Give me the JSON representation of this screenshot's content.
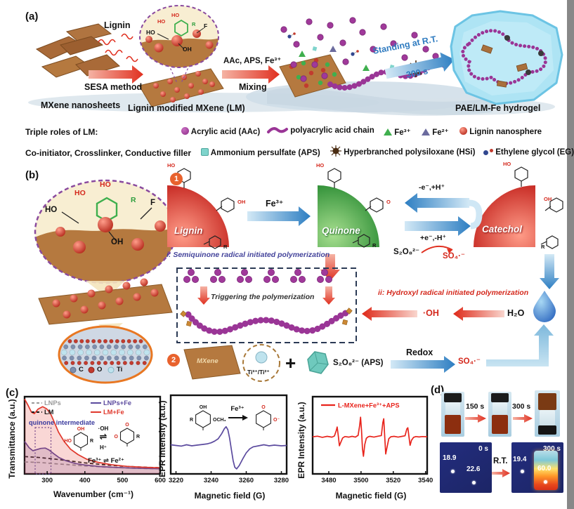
{
  "panel_a": {
    "label": "(a)",
    "steps": {
      "s1_top": "Lignin",
      "s1_bottom": "SESA method",
      "s2_top": "AAc, APS, Fe³⁺",
      "s2_bottom": "Mixing",
      "s3_top": "Standing at R.T.",
      "s3_bottom": "300 s"
    },
    "captions": {
      "mxene": "MXene nanosheets",
      "lm": "Lignin modified MXene (LM)",
      "hydrogel": "PAE/LM-Fe hydrogel"
    },
    "inset": {
      "ho_top": "HO",
      "ho_left": "HO",
      "r": "R",
      "f": "F",
      "ho": "HO",
      "oh": "OH"
    }
  },
  "legend": {
    "row1_title": "Triple roles of LM:",
    "row2_title": "Co-initiator, Crosslinker, Conductive filler",
    "aac": "Acrylic acid (AAc)",
    "paa": "polyacrylic acid chain",
    "fe3": "Fe³⁺",
    "fe2": "Fe²⁺",
    "lignin_ns": "Lignin nanosphere",
    "aps": "Ammonium persulfate (APS)",
    "hsi": "Hyperbranched polysiloxane (HSi)",
    "eg": "Ethylene glycol (EG)"
  },
  "panel_b": {
    "label": "(b)",
    "num1": "1",
    "num2": "2",
    "lignin": "Lignin",
    "quinone": "Quinone",
    "catechol": "Catechol",
    "fe3_arrow": "Fe³⁺",
    "cycle_top": "-e⁻,+H⁺",
    "cycle_bottom": "+e⁻,-H⁺",
    "s2o8": "S₂O₈²⁻",
    "so4_top": "SO₄·⁻",
    "semi": "i: Semiquinone radical  initiated polymerization",
    "trigger": "Triggering the polymerization",
    "hydroxyl": "ii: Hydroxyl radical initiated polymerization",
    "oh_radical": "·OH",
    "h2o": "H₂O",
    "mxene": "MXene",
    "ti_label": "Ti³⁺/Ti²⁺",
    "plus": "+",
    "aps_label": "S₂O₈²⁻ (APS)",
    "redox": "Redox",
    "so4_bottom": "SO₄·⁻",
    "atoms": {
      "c": "C",
      "o": "O",
      "ti": "Ti"
    },
    "inset": {
      "ho_red1": "HO",
      "ho_red2": "HO",
      "r": "R",
      "f": "F",
      "ho": "HO",
      "oh": "OH"
    },
    "rings": {
      "lignin": [
        "HO",
        "OH",
        "R"
      ],
      "quinone": [
        "HO",
        "O",
        "R"
      ],
      "catechol": [
        "HO",
        "OH",
        "R"
      ]
    }
  },
  "panel_c": {
    "label": "(c)"
  },
  "panel_d": {
    "label": "(d)",
    "arrow1": "150 s",
    "arrow2": "300 s",
    "rt": "R.T.",
    "thermal_left": {
      "time": "0 s",
      "v1": "18.9",
      "v2": "22.6"
    },
    "thermal_right": {
      "time": "300 s",
      "v1": "19.4",
      "v2": "60.0"
    }
  },
  "chart_data": [
    {
      "type": "line",
      "title": "",
      "xlabel": "Wavenumber (cm⁻¹)",
      "ylabel": "Transmittance (a.u.)",
      "xlim": [
        240,
        600
      ],
      "ylim": [
        0,
        1
      ],
      "xticks": [
        300,
        400,
        500,
        600
      ],
      "grid": false,
      "legend_position": "top",
      "annotation": "quinone intermediate",
      "highlight_band": [
        268,
        310
      ],
      "series": [
        {
          "name": "LNPs",
          "color": "#9a9a9a",
          "dash": true,
          "points": [
            [
              240,
              0.155
            ],
            [
              280,
              0.148
            ],
            [
              320,
              0.132
            ],
            [
              360,
              0.118
            ],
            [
              400,
              0.104
            ],
            [
              450,
              0.09
            ],
            [
              500,
              0.079
            ],
            [
              550,
              0.071
            ],
            [
              600,
              0.066
            ]
          ]
        },
        {
          "name": "LM",
          "color": "#1a1a1a",
          "dash": true,
          "points": [
            [
              240,
              0.225
            ],
            [
              280,
              0.212
            ],
            [
              320,
              0.192
            ],
            [
              360,
              0.168
            ],
            [
              400,
              0.143
            ],
            [
              450,
              0.119
            ],
            [
              500,
              0.1
            ],
            [
              550,
              0.088
            ],
            [
              600,
              0.08
            ]
          ]
        },
        {
          "name": "LNPs+Fe",
          "color": "#5b4a9e",
          "fill": "rgba(91,74,158,0.18)",
          "points": [
            [
              240,
              0.42
            ],
            [
              252,
              0.34
            ],
            [
              262,
              0.3
            ],
            [
              272,
              0.315
            ],
            [
              283,
              0.33
            ],
            [
              295,
              0.335
            ],
            [
              305,
              0.31
            ],
            [
              318,
              0.26
            ],
            [
              332,
              0.21
            ],
            [
              350,
              0.17
            ],
            [
              375,
              0.135
            ],
            [
              400,
              0.115
            ],
            [
              440,
              0.095
            ],
            [
              480,
              0.085
            ],
            [
              530,
              0.075
            ],
            [
              600,
              0.067
            ]
          ]
        },
        {
          "name": "LM+Fe",
          "color": "#e0382c",
          "fill": "rgba(224,56,44,0.20)",
          "points": [
            [
              240,
              0.97
            ],
            [
              250,
              0.88
            ],
            [
              258,
              0.8
            ],
            [
              266,
              0.78
            ],
            [
              276,
              0.84
            ],
            [
              288,
              0.87
            ],
            [
              298,
              0.845
            ],
            [
              308,
              0.79
            ],
            [
              318,
              0.68
            ],
            [
              330,
              0.54
            ],
            [
              345,
              0.42
            ],
            [
              362,
              0.32
            ],
            [
              382,
              0.25
            ],
            [
              405,
              0.19
            ],
            [
              435,
              0.15
            ],
            [
              470,
              0.12
            ],
            [
              510,
              0.098
            ],
            [
              555,
              0.086
            ],
            [
              600,
              0.078
            ]
          ]
        }
      ],
      "inset": {
        "ring1": [
          "HO",
          "OH",
          "R"
        ],
        "eq_top": "·OH",
        "eq": "⇌",
        "eq_bottom": "H⁺",
        "ring2": [
          "O",
          "O",
          "R"
        ],
        "fe_eq": "Fe³⁺ ⇌ Fe²⁺"
      }
    },
    {
      "type": "line",
      "title": "",
      "xlabel": "Magnetic field (G)",
      "ylabel": "EPR Intensity (a.u.)",
      "xlim": [
        3217,
        3283
      ],
      "ylim": [
        -0.85,
        1.5
      ],
      "xticks": [
        3220,
        3240,
        3260,
        3280
      ],
      "grid": false,
      "series": [
        {
          "name": "",
          "color": "#5b4a9e",
          "points": [
            [
              3217,
              0.02
            ],
            [
              3220,
              0
            ],
            [
              3223,
              -0.02
            ],
            [
              3226,
              0.02
            ],
            [
              3229,
              -0.01
            ],
            [
              3232,
              0.01
            ],
            [
              3235,
              0.03
            ],
            [
              3238,
              0.05
            ],
            [
              3240,
              0.08
            ],
            [
              3242,
              0.13
            ],
            [
              3244,
              0.2
            ],
            [
              3246,
              0.35
            ],
            [
              3247.5,
              0.5
            ],
            [
              3248.5,
              0.56
            ],
            [
              3249.5,
              0.47
            ],
            [
              3250.5,
              0.22
            ],
            [
              3251.5,
              -0.12
            ],
            [
              3252.5,
              -0.45
            ],
            [
              3253.5,
              -0.65
            ],
            [
              3254.5,
              -0.7
            ],
            [
              3256,
              -0.6
            ],
            [
              3258,
              -0.4
            ],
            [
              3260,
              -0.22
            ],
            [
              3262,
              -0.1
            ],
            [
              3264,
              -0.04
            ],
            [
              3267,
              -0.01
            ],
            [
              3270,
              0.02
            ],
            [
              3273,
              -0.01
            ],
            [
              3276,
              0.01
            ],
            [
              3280,
              -0.01
            ],
            [
              3283,
              0
            ]
          ]
        }
      ],
      "inset": {
        "ring1": [
          "R",
          "OH",
          "OCH₃"
        ],
        "arrow_label": "Fe³⁺",
        "ring2": [
          "",
          "O",
          "O⁻"
        ]
      }
    },
    {
      "type": "line",
      "title": "",
      "xlabel": "Magnetic field (G)",
      "ylabel": "EPR Intensity (a.u.)",
      "xlim": [
        3470,
        3541
      ],
      "ylim": [
        -1.9,
        2.05
      ],
      "xticks": [
        3480,
        3500,
        3520,
        3540
      ],
      "grid": false,
      "legend_position": "top-left",
      "series": [
        {
          "name": "L-MXene+Fe³⁺+APS",
          "color": "#e8241c",
          "points": [
            [
              3470,
              0
            ],
            [
              3473,
              0.03
            ],
            [
              3476,
              -0.03
            ],
            [
              3479,
              0.02
            ],
            [
              3482,
              -0.02
            ],
            [
              3483.5,
              0.04
            ],
            [
              3484.6,
              0.3
            ],
            [
              3485.2,
              0.5
            ],
            [
              3485.9,
              0.05
            ],
            [
              3486.6,
              -0.46
            ],
            [
              3487.4,
              -0.3
            ],
            [
              3488.6,
              -0.06
            ],
            [
              3490,
              0.01
            ],
            [
              3492.5,
              -0.02
            ],
            [
              3494.5,
              0.02
            ],
            [
              3496.5,
              -0.02
            ],
            [
              3498.2,
              0.07
            ],
            [
              3499.1,
              0.55
            ],
            [
              3499.7,
              1.0
            ],
            [
              3500.3,
              0.3
            ],
            [
              3500.9,
              -0.6
            ],
            [
              3501.5,
              -1.0
            ],
            [
              3502.3,
              -0.4
            ],
            [
              3503.3,
              -0.08
            ],
            [
              3504.5,
              0
            ],
            [
              3505.5,
              0.02
            ],
            [
              3508,
              -0.02
            ],
            [
              3510.5,
              0.03
            ],
            [
              3512.6,
              0.06
            ],
            [
              3513.5,
              0.72
            ],
            [
              3514.1,
              0.92
            ],
            [
              3514.7,
              0
            ],
            [
              3515.3,
              -0.88
            ],
            [
              3516.1,
              -0.55
            ],
            [
              3517.2,
              -0.1
            ],
            [
              3518.5,
              0
            ],
            [
              3520.5,
              0.02
            ],
            [
              3523,
              -0.02
            ],
            [
              3525.5,
              0.02
            ],
            [
              3527.3,
              0.05
            ],
            [
              3528.4,
              0.4
            ],
            [
              3529,
              0.46
            ],
            [
              3529.7,
              0
            ],
            [
              3530.4,
              -0.44
            ],
            [
              3531.3,
              -0.18
            ],
            [
              3532.6,
              -0.03
            ],
            [
              3534,
              0.01
            ],
            [
              3536,
              -0.01
            ],
            [
              3538,
              0.01
            ],
            [
              3541,
              0
            ]
          ]
        }
      ]
    }
  ]
}
